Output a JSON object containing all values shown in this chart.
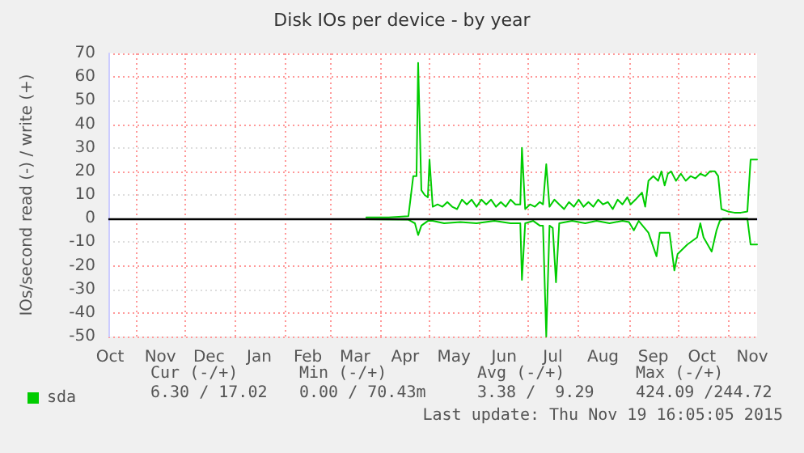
{
  "chart_data": {
    "type": "line",
    "title": "Disk IOs per device - by year",
    "ylabel": "IOs/second read (-) / write (+)",
    "xlim": [
      "2014-10-15",
      "2015-11-19"
    ],
    "xticks": [
      {
        "value": "2014-10-16",
        "label": "Oct"
      },
      {
        "value": "2014-11-01",
        "label": null
      },
      {
        "value": "2014-11-16",
        "label": "Nov"
      },
      {
        "value": "2014-12-01",
        "label": null
      },
      {
        "value": "2014-12-16",
        "label": "Dec"
      },
      {
        "value": "2015-01-01",
        "label": null
      },
      {
        "value": "2015-01-16",
        "label": "Jan"
      },
      {
        "value": "2015-02-01",
        "label": null
      },
      {
        "value": "2015-02-15",
        "label": "Feb"
      },
      {
        "value": "2015-03-01",
        "label": null
      },
      {
        "value": "2015-03-16",
        "label": "Mar"
      },
      {
        "value": "2015-04-01",
        "label": null
      },
      {
        "value": "2015-04-16",
        "label": "Apr"
      },
      {
        "value": "2015-05-01",
        "label": null
      },
      {
        "value": "2015-05-16",
        "label": "May"
      },
      {
        "value": "2015-06-01",
        "label": null
      },
      {
        "value": "2015-06-16",
        "label": "Jun"
      },
      {
        "value": "2015-07-01",
        "label": null
      },
      {
        "value": "2015-07-16",
        "label": "Jul"
      },
      {
        "value": "2015-08-01",
        "label": null
      },
      {
        "value": "2015-08-16",
        "label": "Aug"
      },
      {
        "value": "2015-09-01",
        "label": null
      },
      {
        "value": "2015-09-16",
        "label": "Sep"
      },
      {
        "value": "2015-10-01",
        "label": null
      },
      {
        "value": "2015-10-16",
        "label": "Oct"
      },
      {
        "value": "2015-11-01",
        "label": null
      },
      {
        "value": "2015-11-16",
        "label": "Nov"
      }
    ],
    "ylim": [
      -50,
      70
    ],
    "yticks": [
      -50,
      -40,
      -30,
      -20,
      -10,
      0,
      10,
      20,
      30,
      40,
      50,
      60,
      70
    ],
    "grid": true,
    "legend": "bottom left",
    "marker": "none",
    "line_style": "solid",
    "ref_lines": [
      {
        "axis": "y",
        "value": 0,
        "color": "#000000"
      }
    ],
    "annotations": [
      "Cur (-/+)",
      "Min (-/+)",
      "Avg (-/+)",
      "Max (-/+)",
      "6.30 / 17.02",
      "0.00 / 70.43m",
      "3.38 /  9.29",
      "424.09 /244.72",
      "Last update: Thu Nov 19 16:05:05 2015"
    ],
    "series": [
      {
        "name": "sda",
        "color": "#00cc00",
        "x": [
          "2015-03-23",
          "2015-04-06",
          "2015-04-18",
          "2015-04-21",
          "2015-04-23",
          "2015-04-24",
          "2015-04-26",
          "2015-04-28",
          "2015-04-30",
          "2015-05-01",
          "2015-05-03",
          "2015-05-06",
          "2015-05-09",
          "2015-05-12",
          "2015-05-15",
          "2015-05-18",
          "2015-05-21",
          "2015-05-24",
          "2015-05-27",
          "2015-05-30",
          "2015-06-02",
          "2015-06-05",
          "2015-06-08",
          "2015-06-11",
          "2015-06-14",
          "2015-06-17",
          "2015-06-20",
          "2015-06-23",
          "2015-06-26",
          "2015-06-27",
          "2015-06-29",
          "2015-07-02",
          "2015-07-05",
          "2015-07-08",
          "2015-07-10",
          "2015-07-12",
          "2015-07-14",
          "2015-07-17",
          "2015-07-20",
          "2015-07-23",
          "2015-07-26",
          "2015-07-29",
          "2015-08-01",
          "2015-08-04",
          "2015-08-07",
          "2015-08-10",
          "2015-08-13",
          "2015-08-16",
          "2015-08-19",
          "2015-08-22",
          "2015-08-25",
          "2015-08-28",
          "2015-08-31",
          "2015-09-02",
          "2015-09-05",
          "2015-09-09",
          "2015-09-11",
          "2015-09-13",
          "2015-09-16",
          "2015-09-19",
          "2015-09-21",
          "2015-09-23",
          "2015-09-25",
          "2015-09-27",
          "2015-09-30",
          "2015-10-03",
          "2015-10-06",
          "2015-10-09",
          "2015-10-12",
          "2015-10-15",
          "2015-10-18",
          "2015-10-21",
          "2015-10-24",
          "2015-10-26",
          "2015-10-28",
          "2015-11-01",
          "2015-11-05",
          "2015-11-09",
          "2015-11-13",
          "2015-11-15",
          "2015-11-19"
        ],
        "values": [
          0.5,
          0.5,
          1,
          18,
          18,
          66,
          12,
          10,
          9,
          25,
          5,
          6,
          5,
          7,
          5,
          4,
          8,
          6,
          8,
          5,
          8,
          6,
          8,
          5,
          7,
          5,
          8,
          6,
          6,
          30,
          4,
          6,
          5,
          7,
          6,
          23,
          5,
          8,
          6,
          4,
          7,
          5,
          8,
          5,
          7,
          5,
          8,
          6,
          7,
          4,
          8,
          6,
          9,
          6,
          8,
          11,
          5,
          16,
          18,
          16,
          20,
          14,
          19,
          20,
          16,
          19,
          16,
          18,
          17,
          19,
          18,
          20,
          20,
          18,
          4,
          3,
          2.5,
          2.5,
          3,
          25,
          25
        ]
      },
      {
        "color": "#00cc00",
        "x": [
          "2015-03-23",
          "2015-04-18",
          "2015-04-22",
          "2015-04-24",
          "2015-04-26",
          "2015-04-30",
          "2015-05-03",
          "2015-05-10",
          "2015-05-20",
          "2015-05-30",
          "2015-06-10",
          "2015-06-20",
          "2015-06-26",
          "2015-06-27",
          "2015-06-29",
          "2015-07-04",
          "2015-07-08",
          "2015-07-10",
          "2015-07-12",
          "2015-07-14",
          "2015-07-16",
          "2015-07-18",
          "2015-07-20",
          "2015-07-28",
          "2015-08-05",
          "2015-08-12",
          "2015-08-20",
          "2015-08-28",
          "2015-09-01",
          "2015-09-04",
          "2015-09-07",
          "2015-09-13",
          "2015-09-18",
          "2015-09-20",
          "2015-09-26",
          "2015-09-29",
          "2015-10-01",
          "2015-10-07",
          "2015-10-13",
          "2015-10-15",
          "2015-10-17",
          "2015-10-22",
          "2015-10-25",
          "2015-10-27",
          "2015-10-29",
          "2015-11-13",
          "2015-11-15",
          "2015-11-19"
        ],
        "values": [
          -0.3,
          -0.5,
          -2,
          -7,
          -3,
          -1,
          -1,
          -2,
          -1.5,
          -2,
          -1,
          -2,
          -2,
          -26,
          -2,
          -1,
          -3,
          -3,
          -50,
          -3,
          -4,
          -27,
          -2,
          -1,
          -2,
          -1,
          -2,
          -1,
          -1.5,
          -5,
          -1,
          -6,
          -16,
          -6,
          -6,
          -22,
          -15,
          -11,
          -8,
          -2,
          -8,
          -14,
          -5,
          -1,
          0,
          0,
          -11,
          -11
        ]
      }
    ]
  }
}
